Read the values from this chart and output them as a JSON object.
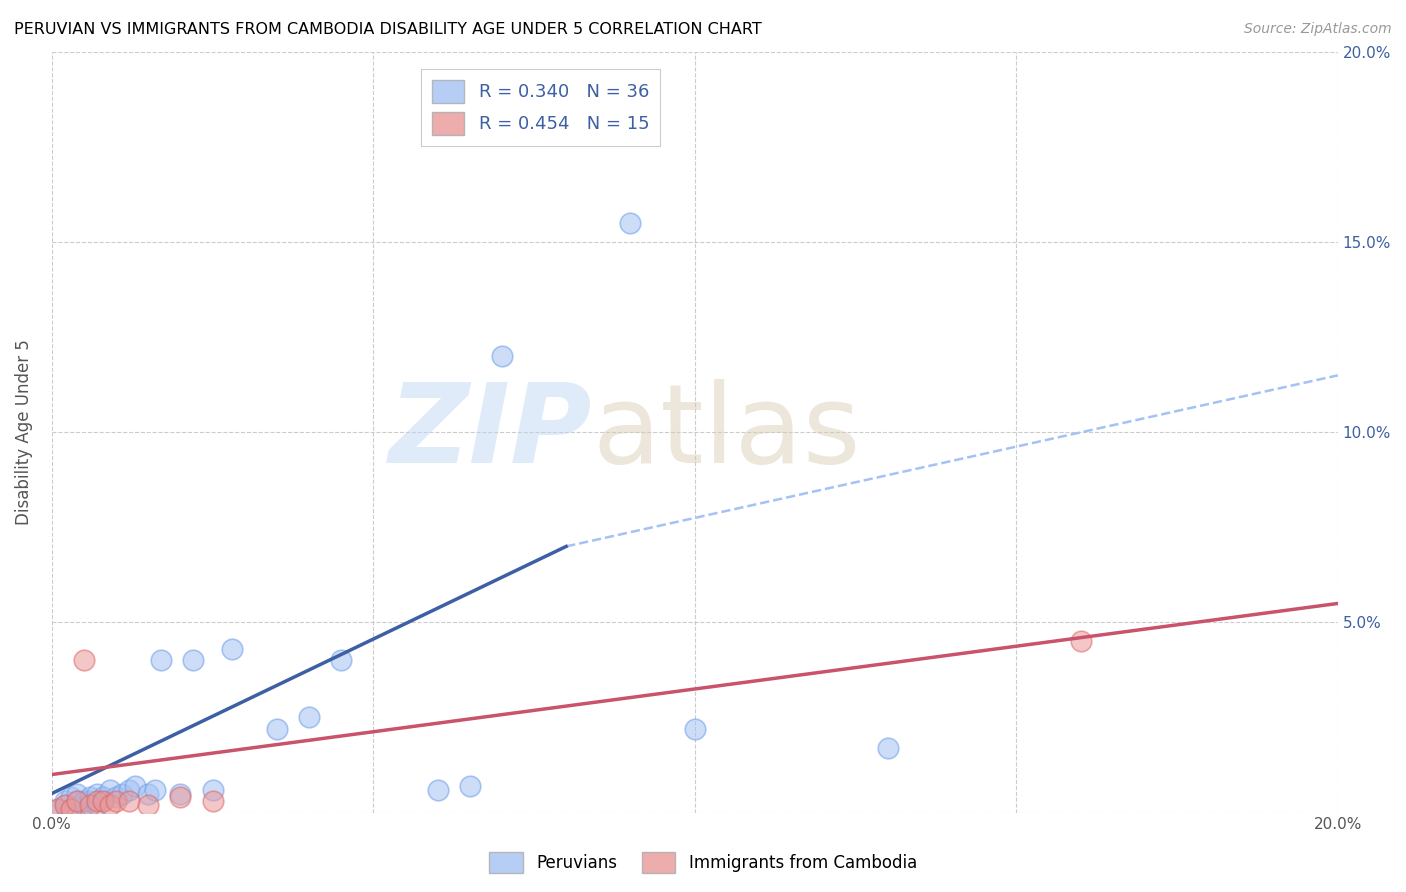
{
  "title": "PERUVIAN VS IMMIGRANTS FROM CAMBODIA DISABILITY AGE UNDER 5 CORRELATION CHART",
  "source": "Source: ZipAtlas.com",
  "ylabel": "Disability Age Under 5",
  "xlim": [
    0.0,
    0.2
  ],
  "ylim": [
    0.0,
    0.2
  ],
  "x_ticks": [
    0.0,
    0.05,
    0.1,
    0.15,
    0.2
  ],
  "y_ticks": [
    0.0,
    0.05,
    0.1,
    0.15,
    0.2
  ],
  "x_tick_labels": [
    "0.0%",
    "",
    "",
    "",
    "20.0%"
  ],
  "y_tick_labels": [
    "",
    "",
    "",
    "",
    ""
  ],
  "right_y_tick_labels": [
    "",
    "5.0%",
    "10.0%",
    "15.0%",
    "20.0%"
  ],
  "blue_color": "#a4c2f4",
  "blue_edge_color": "#6d9eeb",
  "pink_color": "#ea9999",
  "pink_edge_color": "#e06666",
  "blue_line_color": "#3d5fa3",
  "pink_line_color": "#c9536a",
  "dashed_line_color": "#a4c2f4",
  "legend_blue_label": "R = 0.340   N = 36",
  "legend_pink_label": "R = 0.454   N = 15",
  "peruvians_label": "Peruvians",
  "cambodia_label": "Immigrants from Cambodia",
  "bg_color": "#ffffff",
  "grid_color": "#cccccc",
  "title_color": "#000000",
  "axis_label_color": "#555555",
  "right_axis_color": "#3d5fa3",
  "blue_points_x": [
    0.001,
    0.002,
    0.002,
    0.003,
    0.003,
    0.004,
    0.004,
    0.005,
    0.005,
    0.006,
    0.006,
    0.007,
    0.007,
    0.008,
    0.008,
    0.009,
    0.01,
    0.011,
    0.012,
    0.013,
    0.015,
    0.016,
    0.017,
    0.02,
    0.022,
    0.025,
    0.028,
    0.035,
    0.04,
    0.045,
    0.06,
    0.065,
    0.07,
    0.09,
    0.1,
    0.13
  ],
  "blue_points_y": [
    0.001,
    0.002,
    0.003,
    0.001,
    0.004,
    0.003,
    0.005,
    0.002,
    0.003,
    0.003,
    0.004,
    0.002,
    0.005,
    0.003,
    0.004,
    0.006,
    0.004,
    0.005,
    0.006,
    0.007,
    0.005,
    0.006,
    0.04,
    0.005,
    0.04,
    0.006,
    0.043,
    0.022,
    0.025,
    0.04,
    0.006,
    0.007,
    0.12,
    0.155,
    0.022,
    0.017
  ],
  "pink_points_x": [
    0.001,
    0.002,
    0.003,
    0.004,
    0.005,
    0.006,
    0.007,
    0.008,
    0.009,
    0.01,
    0.012,
    0.015,
    0.02,
    0.025,
    0.16
  ],
  "pink_points_y": [
    0.001,
    0.002,
    0.001,
    0.003,
    0.04,
    0.002,
    0.003,
    0.003,
    0.002,
    0.003,
    0.003,
    0.002,
    0.004,
    0.003,
    0.045
  ],
  "blue_line_x_start": 0.0,
  "blue_line_x_end": 0.08,
  "blue_line_y_start": 0.005,
  "blue_line_y_end": 0.07,
  "dashed_line_x_start": 0.08,
  "dashed_line_x_end": 0.2,
  "dashed_line_y_start": 0.07,
  "dashed_line_y_end": 0.115,
  "pink_line_x_start": 0.0,
  "pink_line_x_end": 0.2,
  "pink_line_y_start": 0.01,
  "pink_line_y_end": 0.055
}
